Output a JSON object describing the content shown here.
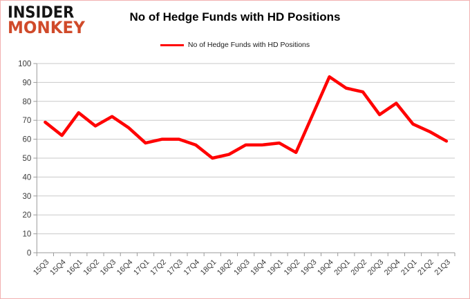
{
  "logo": {
    "line1": "INSIDER",
    "line2": "MONKEY"
  },
  "chart_data": {
    "type": "line",
    "title": "No of Hedge Funds with HD Positions",
    "legend_entries": [
      "No of Hedge Funds with HD Positions"
    ],
    "legend_position": "top",
    "grid": true,
    "categories": [
      "15Q3",
      "15Q4",
      "16Q1",
      "16Q2",
      "16Q3",
      "16Q4",
      "17Q1",
      "17Q2",
      "17Q3",
      "17Q4",
      "18Q1",
      "18Q2",
      "18Q3",
      "18Q4",
      "19Q1",
      "19Q2",
      "19Q3",
      "19Q4",
      "20Q1",
      "20Q2",
      "20Q3",
      "20Q4",
      "21Q1",
      "21Q2",
      "21Q3"
    ],
    "series": [
      {
        "name": "No of Hedge Funds with HD Positions",
        "color": "#ff0000",
        "values": [
          69,
          62,
          74,
          67,
          72,
          66,
          58,
          60,
          60,
          57,
          50,
          52,
          57,
          57,
          58,
          53,
          73,
          93,
          87,
          85,
          73,
          79,
          68,
          64,
          59
        ]
      }
    ],
    "ylabel": "",
    "xlabel": "",
    "ylim": [
      0,
      100
    ],
    "ytick_step": 10
  },
  "colors": {
    "series_red": "#ff0000",
    "logo_red": "#d04a2a",
    "frame_border": "#f2b0b0",
    "gridline": "#c8c8c8",
    "axis": "#9a9a9a",
    "tick_text": "#3b3b3b"
  }
}
